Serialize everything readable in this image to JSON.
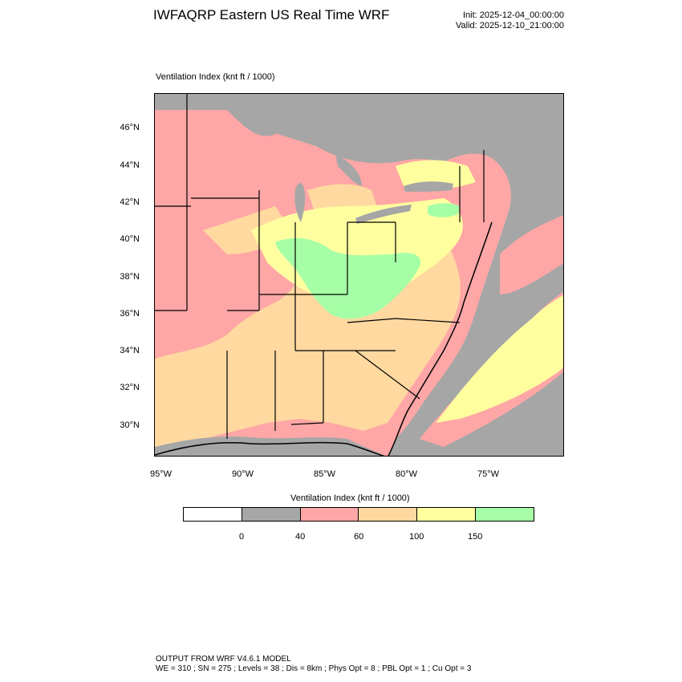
{
  "header": {
    "title": "IWFAQRP Eastern US Real Time WRF",
    "init": "Init: 2025-12-04_00:00:00",
    "valid": "Valid: 2025-12-10_21:00:00"
  },
  "plot": {
    "label": "Ventilation Index   (knt ft / 1000)",
    "lat_labels": [
      "46°N",
      "44°N",
      "42°N",
      "40°N",
      "38°N",
      "36°N",
      "34°N",
      "32°N",
      "30°N"
    ],
    "lon_labels": [
      "95°W",
      "90°W",
      "85°W",
      "80°W",
      "75°W"
    ]
  },
  "colorbar": {
    "label": "Ventilation Index  (knt ft / 1000)",
    "colors": [
      "#ffffff",
      "#a6a6a6",
      "#ffa6a6",
      "#ffd9a0",
      "#ffff9f",
      "#a6ffa6"
    ],
    "ticks": [
      "0",
      "40",
      "60",
      "100",
      "150"
    ]
  },
  "footer": {
    "line1": "OUTPUT FROM WRF V4.6.1 MODEL",
    "line2": "WE = 310 ; SN = 275 ; Levels = 38 ; Dis = 8km ; Phys Opt = 8 ; PBL Opt = 1 ; Cu Opt = 3"
  }
}
